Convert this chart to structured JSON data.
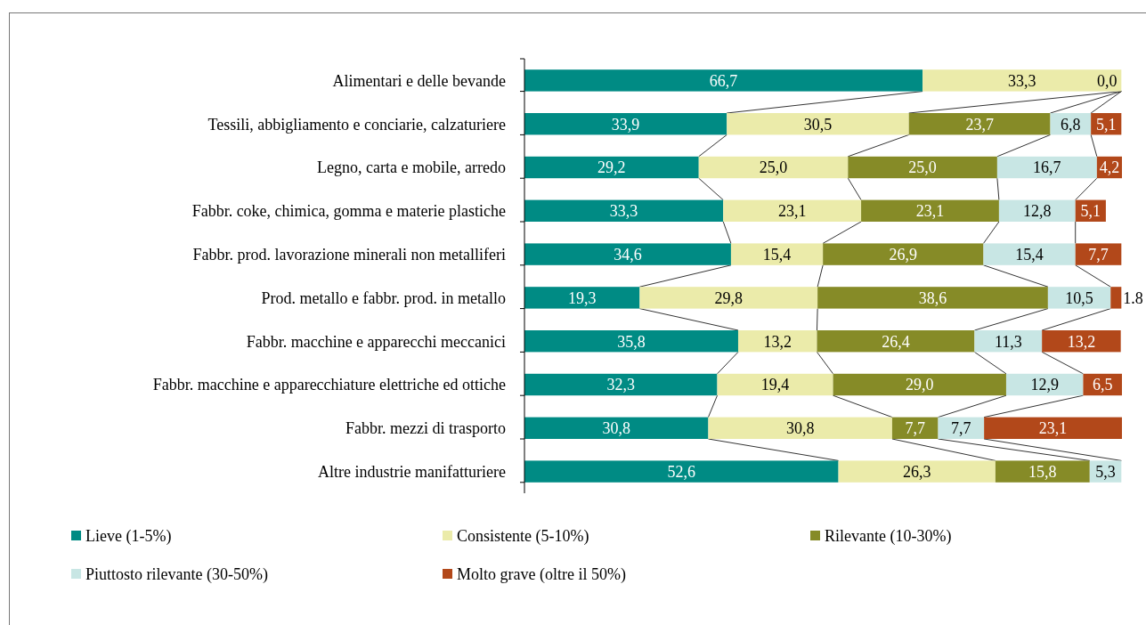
{
  "chart_data": {
    "type": "bar",
    "orientation": "horizontal",
    "stacked": true,
    "legend": "bottom",
    "categories": [
      "Alimentari e delle bevande",
      "Tessili, abbigliamento e conciarie, calzaturiere",
      "Legno, carta e mobile, arredo",
      "Fabbr. coke, chimica, gomma e materie plastiche",
      "Fabbr. prod. lavorazione minerali non metalliferi",
      "Prod. metallo e fabbr. prod. in metallo",
      "Fabbr. macchine e apparecchi meccanici",
      "Fabbr. macchine e apparecchiature elettriche ed ottiche",
      "Fabbr. mezzi di trasporto",
      "Altre industrie manifatturiere"
    ],
    "series": [
      {
        "name": "Lieve (1-5%)",
        "color": "#008b84",
        "values": [
          66.7,
          33.9,
          29.2,
          33.3,
          34.6,
          19.3,
          35.8,
          32.3,
          30.8,
          52.6
        ],
        "value_labels": [
          "66,7",
          "33,9",
          "29,2",
          "33,3",
          "34,6",
          "19,3",
          "35,8",
          "32,3",
          "30,8",
          "52,6"
        ]
      },
      {
        "name": "Consistente (5-10%)",
        "color": "#ebebaa",
        "values": [
          33.3,
          30.5,
          25.0,
          23.1,
          15.4,
          29.8,
          13.2,
          19.4,
          30.8,
          26.3
        ],
        "value_labels": [
          "33,3",
          "30,5",
          "25,0",
          "23,1",
          "15,4",
          "29,8",
          "13,2",
          "19,4",
          "30,8",
          "26,3"
        ]
      },
      {
        "name": "Rilevante (10-30%)",
        "color": "#868b27",
        "values": [
          0.0,
          23.7,
          25.0,
          23.1,
          26.9,
          38.6,
          26.4,
          29.0,
          7.7,
          15.8
        ],
        "value_labels": [
          "0,0",
          "23,7",
          "25,0",
          "23,1",
          "26,9",
          "38,6",
          "26,4",
          "29,0",
          "7,7",
          "15,8"
        ]
      },
      {
        "name": "Piuttosto rilevante (30-50%)",
        "color": "#c8e6e4",
        "values": [
          null,
          6.8,
          16.7,
          12.8,
          15.4,
          10.5,
          11.3,
          12.9,
          7.7,
          5.3
        ],
        "value_labels": [
          null,
          "6,8",
          "16,7",
          "12,8",
          "15,4",
          "10,5",
          "11,3",
          "12,9",
          "7,7",
          "5,3"
        ]
      },
      {
        "name": "Molto grave (oltre il 50%)",
        "color": "#b2481a",
        "values": [
          null,
          5.1,
          4.2,
          5.1,
          7.7,
          1.8,
          13.2,
          6.5,
          23.1,
          null
        ],
        "value_labels": [
          null,
          "5,1",
          "4,2",
          "5,1",
          "7,7",
          "1.8",
          "13,2",
          "6,5",
          "23,1",
          null
        ]
      }
    ]
  }
}
